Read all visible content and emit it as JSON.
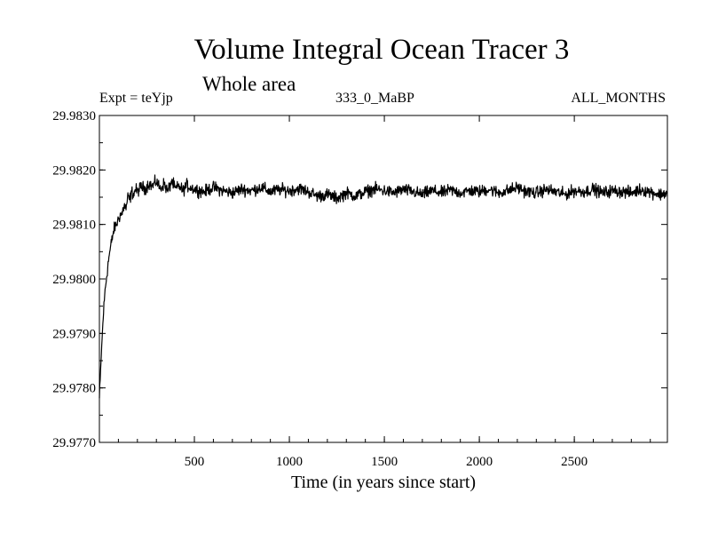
{
  "chart_data": {
    "type": "line",
    "title": "Volume Integral Ocean Tracer 3",
    "subtitle": "Whole area",
    "annotations": {
      "left": "Expt = teYjp",
      "center": "333_0_MaBP",
      "right": "ALL_MONTHS"
    },
    "xlabel": "Time (in years since start)",
    "ylabel": "",
    "xlim": [
      0,
      2990
    ],
    "ylim": [
      29.977,
      29.983
    ],
    "xticks": [
      500,
      1000,
      1500,
      2000,
      2500
    ],
    "yticks": [
      "29.9770",
      "29.9780",
      "29.9790",
      "29.9800",
      "29.9810",
      "29.9820",
      "29.9830"
    ],
    "grid": false,
    "series": [
      {
        "color": "#000000",
        "x": [
          0,
          10,
          20,
          30,
          40,
          50,
          60,
          70,
          80,
          90,
          100,
          110,
          120,
          130,
          140,
          150,
          160,
          170,
          180,
          190,
          200,
          220,
          240,
          260,
          280,
          300,
          320,
          340,
          360,
          380,
          400,
          420,
          440,
          460,
          480,
          500,
          550,
          600,
          650,
          700,
          750,
          800,
          850,
          900,
          950,
          1000,
          1050,
          1100,
          1150,
          1200,
          1250,
          1300,
          1350,
          1400,
          1450,
          1500,
          1550,
          1600,
          1650,
          1700,
          1750,
          1800,
          1850,
          1900,
          1950,
          2000,
          2050,
          2100,
          2150,
          2200,
          2250,
          2300,
          2350,
          2400,
          2450,
          2500,
          2550,
          2600,
          2650,
          2700,
          2750,
          2800,
          2850,
          2900,
          2950,
          2990
        ],
        "values": [
          29.9778,
          29.9786,
          29.9793,
          29.9798,
          29.9801,
          29.9804,
          29.9806,
          29.9808,
          29.98095,
          29.981,
          29.9811,
          29.98118,
          29.9812,
          29.98135,
          29.9813,
          29.9815,
          29.98145,
          29.9816,
          29.98155,
          29.98165,
          29.9816,
          29.9817,
          29.98165,
          29.98175,
          29.9817,
          29.9818,
          29.98165,
          29.98175,
          29.9816,
          29.9818,
          29.98165,
          29.9817,
          29.98162,
          29.98172,
          29.98168,
          29.98165,
          29.9816,
          29.98168,
          29.98162,
          29.98158,
          29.98165,
          29.98162,
          29.98168,
          29.9816,
          29.98164,
          29.98162,
          29.98166,
          29.9816,
          29.98152,
          29.98155,
          29.98148,
          29.98158,
          29.98152,
          29.9816,
          29.98165,
          29.98162,
          29.98158,
          29.98164,
          29.9816,
          29.98155,
          29.98162,
          29.98158,
          29.98163,
          29.98158,
          29.98162,
          29.9816,
          29.98165,
          29.98158,
          29.98162,
          29.98168,
          29.9816,
          29.98158,
          29.98164,
          29.9816,
          29.98155,
          29.98162,
          29.9816,
          29.98165,
          29.98158,
          29.98162,
          29.9816,
          29.98158,
          29.98164,
          29.9816,
          29.98155,
          29.98158
        ]
      }
    ]
  }
}
